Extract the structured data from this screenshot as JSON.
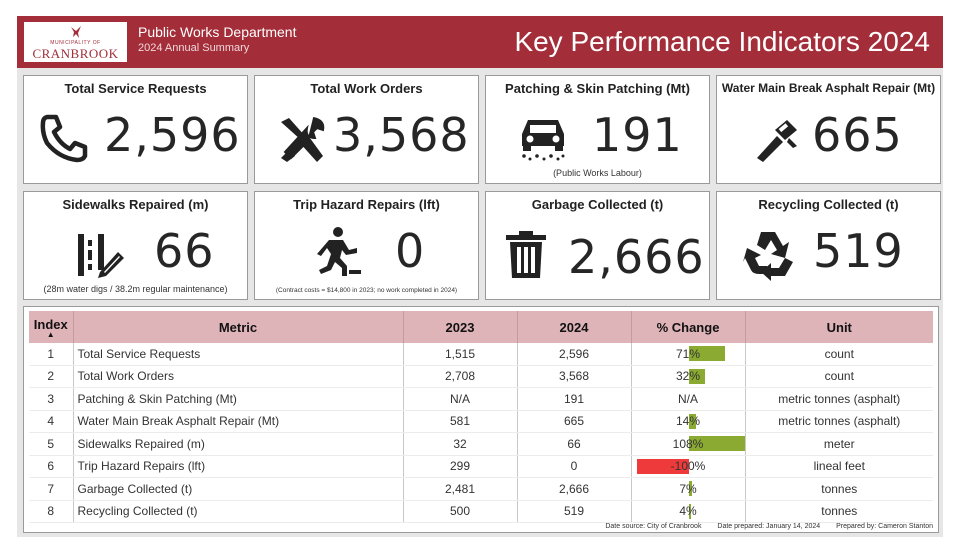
{
  "header": {
    "logo_tag": "MUNICIPALITY OF",
    "logo_name": "CRANBROOK",
    "department": "Public Works Department",
    "subtitle": "2024 Annual Summary",
    "title": "Key Performance Indicators 2024"
  },
  "cards": [
    {
      "title": "Total Service Requests",
      "value": "2,596",
      "icon": "phone-icon",
      "note": ""
    },
    {
      "title": "Total Work Orders",
      "value": "3,568",
      "icon": "tools-icon",
      "note": ""
    },
    {
      "title": "Patching & Skin Patching (Mt)",
      "value": "191",
      "icon": "car-icon",
      "note": "(Public Works Labour)"
    },
    {
      "title": "Water Main Break Asphalt Repair (Mt)",
      "value": "665",
      "icon": "pipe-wrench-icon",
      "note": ""
    },
    {
      "title": "Sidewalks Repaired (m)",
      "value": "66",
      "icon": "ruler-pencil-icon",
      "note": "(28m water digs / 38.2m regular maintenance)"
    },
    {
      "title": "Trip Hazard Repairs (lft)",
      "value": "0",
      "icon": "tripping-person-icon",
      "note": "(Contract costs = $14,800 in 2023; no work completed in 2024)"
    },
    {
      "title": "Garbage Collected (t)",
      "value": "2,666",
      "icon": "trash-icon",
      "note": ""
    },
    {
      "title": "Recycling Collected (t)",
      "value": "519",
      "icon": "recycle-icon",
      "note": ""
    }
  ],
  "table": {
    "headers": [
      "Index",
      "Metric",
      "2023",
      "2024",
      "% Change",
      "Unit"
    ],
    "rows": [
      {
        "index": "1",
        "metric": "Total Service Requests",
        "y2023": "1,515",
        "y2024": "2,596",
        "change": "71%",
        "change_value": 71,
        "unit": "count"
      },
      {
        "index": "2",
        "metric": "Total Work Orders",
        "y2023": "2,708",
        "y2024": "3,568",
        "change": "32%",
        "change_value": 32,
        "unit": "count"
      },
      {
        "index": "3",
        "metric": "Patching & Skin Patching (Mt)",
        "y2023": "N/A",
        "y2024": "191",
        "change": "N/A",
        "change_value": 0,
        "unit": "metric tonnes (asphalt)"
      },
      {
        "index": "4",
        "metric": "Water Main Break Asphalt Repair (Mt)",
        "y2023": "581",
        "y2024": "665",
        "change": "14%",
        "change_value": 14,
        "unit": "metric tonnes (asphalt)"
      },
      {
        "index": "5",
        "metric": "Sidewalks Repaired (m)",
        "y2023": "32",
        "y2024": "66",
        "change": "108%",
        "change_value": 108,
        "unit": "meter"
      },
      {
        "index": "6",
        "metric": "Trip Hazard Repairs (lft)",
        "y2023": "299",
        "y2024": "0",
        "change": "-100%",
        "change_value": -100,
        "unit": "lineal feet"
      },
      {
        "index": "7",
        "metric": "Garbage Collected (t)",
        "y2023": "2,481",
        "y2024": "2,666",
        "change": "7%",
        "change_value": 7,
        "unit": "tonnes"
      },
      {
        "index": "8",
        "metric": "Recycling Collected (t)",
        "y2023": "500",
        "y2024": "519",
        "change": "4%",
        "change_value": 4,
        "unit": "tonnes"
      }
    ]
  },
  "footer": {
    "source": "Date source: City of Cranbrook",
    "prepared_date": "Date prepared: January 14, 2024",
    "prepared_by": "Prepared by: Cameron Stanton"
  },
  "colors": {
    "brand": "#a32d38",
    "positive": "#8aaa32",
    "negative": "#ee3a3a",
    "header_row": "#dfb4b9"
  }
}
